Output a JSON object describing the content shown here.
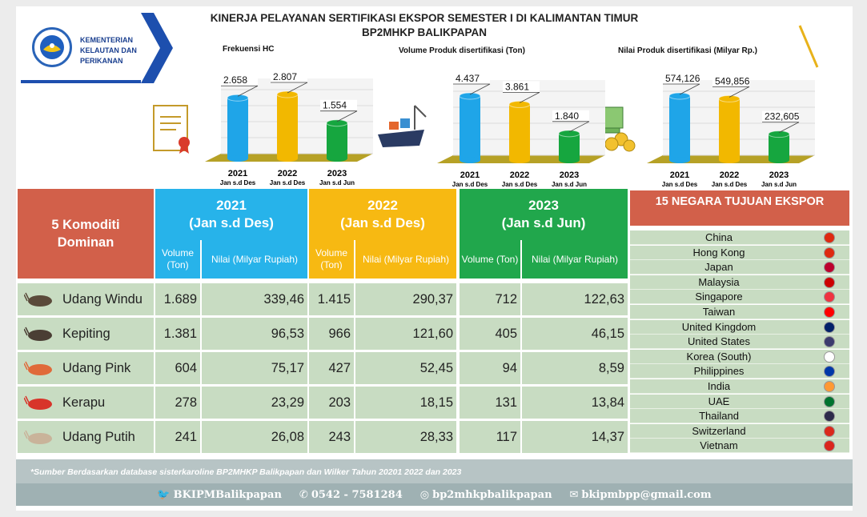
{
  "org": {
    "name": "KEMENTERIAN KELAUTAN DAN PERIKANAN"
  },
  "title": {
    "line1": "KINERJA PELAYANAN SERTIFIKASI EKSPOR SEMESTER I DI KALIMANTAN TIMUR",
    "line2": "BP2MHKP BALIKPAPAN"
  },
  "chart_data": [
    {
      "type": "bar",
      "title": "Frekuensi HC",
      "categories": [
        "2021",
        "2022",
        "2023"
      ],
      "sub_categories": [
        "Jan s.d Des",
        "Jan s.d Des",
        "Jan s.d Jun"
      ],
      "values": [
        2658,
        2807,
        1554
      ],
      "labels": [
        "2.658",
        "2.807",
        "1.554"
      ],
      "colors": [
        "#1fa5e8",
        "#f2b800",
        "#16a63f"
      ]
    },
    {
      "type": "bar",
      "title": "Volume Produk disertifikasi (Ton)",
      "categories": [
        "2021",
        "2022",
        "2023"
      ],
      "sub_categories": [
        "Jan s.d Des",
        "Jan s.d Des",
        "Jan s.d Jun"
      ],
      "values": [
        4437,
        3861,
        1840
      ],
      "labels": [
        "4.437",
        "3.861",
        "1.840"
      ],
      "colors": [
        "#1fa5e8",
        "#f2b800",
        "#16a63f"
      ]
    },
    {
      "type": "bar",
      "title": "Nilai Produk disertifikasi (Milyar Rp.)",
      "categories": [
        "2021",
        "2022",
        "2023"
      ],
      "sub_categories": [
        "Jan s.d Des",
        "Jan s.d Des",
        "Jan s.d Jun"
      ],
      "values": [
        574.126,
        549.856,
        232.605
      ],
      "labels": [
        "574,126",
        "549,856",
        "232,605"
      ],
      "colors": [
        "#1fa5e8",
        "#f2b800",
        "#16a63f"
      ]
    }
  ],
  "table": {
    "header_left": "5 Komoditi Dominan",
    "years": [
      {
        "label": "2021",
        "period": "(Jan s.d Des)",
        "color": "#27b3ea"
      },
      {
        "label": "2022",
        "period": "(Jan s.d Des)",
        "color": "#f7b912"
      },
      {
        "label": "2023",
        "period": "(Jan s.d Jun)",
        "color": "#21a74c"
      }
    ],
    "volume_label": "Volume (Ton)",
    "nilai_label": "Nilai (Milyar Rupiah)",
    "rows": [
      {
        "name": "Udang Windu",
        "icon": "shrimp-icon",
        "v2021": "1.689",
        "n2021": "339,46",
        "v2022": "1.415",
        "n2022": "290,37",
        "v2023": "712",
        "n2023": "122,63"
      },
      {
        "name": "Kepiting",
        "icon": "crab-icon",
        "v2021": "1.381",
        "n2021": "96,53",
        "v2022": "966",
        "n2022": "121,60",
        "v2023": "405",
        "n2023": "46,15"
      },
      {
        "name": "Udang Pink",
        "icon": "pink-shrimp-icon",
        "v2021": "604",
        "n2021": "75,17",
        "v2022": "427",
        "n2022": "52,45",
        "v2023": "94",
        "n2023": "8,59"
      },
      {
        "name": "Kerapu",
        "icon": "fish-icon",
        "v2021": "278",
        "n2021": "23,29",
        "v2022": "203",
        "n2022": "18,15",
        "v2023": "131",
        "n2023": "13,84"
      },
      {
        "name": "Udang Putih",
        "icon": "white-shrimp-icon",
        "v2021": "241",
        "n2021": "26,08",
        "v2022": "243",
        "n2022": "28,33",
        "v2023": "117",
        "n2023": "14,37"
      }
    ]
  },
  "countries": {
    "title": "15 NEGARA TUJUAN EKSPOR",
    "items": [
      {
        "name": "China",
        "flag": "#de2910"
      },
      {
        "name": "Hong Kong",
        "flag": "#de2910"
      },
      {
        "name": "Japan",
        "flag": "#bc002d"
      },
      {
        "name": "Malaysia",
        "flag": "#cc0001"
      },
      {
        "name": "Singapore",
        "flag": "#ef3340"
      },
      {
        "name": "Taiwan",
        "flag": "#fe0000"
      },
      {
        "name": "United Kingdom",
        "flag": "#012169"
      },
      {
        "name": "United States",
        "flag": "#3c3b6e"
      },
      {
        "name": "Korea (South)",
        "flag": "#ffffff"
      },
      {
        "name": "Philippines",
        "flag": "#0038a8"
      },
      {
        "name": "India",
        "flag": "#ff9933"
      },
      {
        "name": "UAE",
        "flag": "#00732f"
      },
      {
        "name": "Thailand",
        "flag": "#2d2a4a"
      },
      {
        "name": "Switzerland",
        "flag": "#da291c"
      },
      {
        "name": "Vietnam",
        "flag": "#da251d"
      }
    ]
  },
  "source": "*Sumber Berdasarkan database sisterkaroline BP2MHKP Balikpapan dan Wilker Tahun 20201 2022 dan 2023",
  "footer": {
    "twitter": "BKIPMBalikpapan",
    "phone": "0542 - 7581284",
    "instagram": "bp2mhkpbalikpapan",
    "email": "bkipmbpp@gmail.com"
  }
}
